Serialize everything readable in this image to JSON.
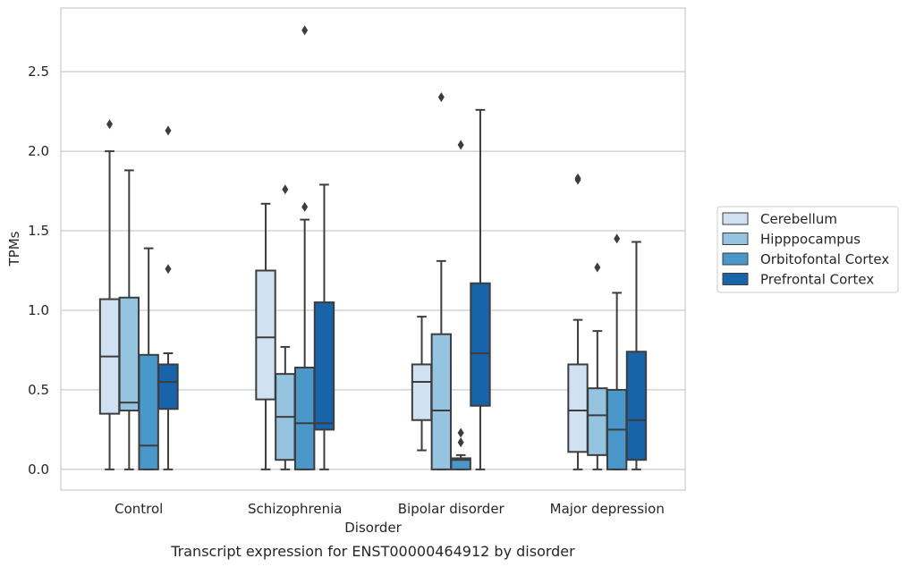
{
  "chart_data": {
    "type": "box",
    "caption": "Transcript expression for ENST00000464912 by disorder",
    "xlabel": "Disorder",
    "ylabel": "TPMs",
    "ylim": [
      -0.13,
      2.9
    ],
    "yticks": [
      "0.0",
      "0.5",
      "1.0",
      "1.5",
      "2.0",
      "2.5"
    ],
    "grid": true,
    "legend_position": "right",
    "categories": [
      "Control",
      "Schizophrenia",
      "Bipolar disorder",
      "Major depression"
    ],
    "series": [
      {
        "name": "Cerebellum",
        "color": "#d0e1f2",
        "boxes": [
          {
            "whisker_low": 0.0,
            "q1": 0.35,
            "median": 0.71,
            "q3": 1.07,
            "whisker_high": 2.0,
            "outliers": [
              2.17
            ]
          },
          {
            "whisker_low": 0.0,
            "q1": 0.44,
            "median": 0.83,
            "q3": 1.25,
            "whisker_high": 1.67,
            "outliers": []
          },
          {
            "whisker_low": 0.12,
            "q1": 0.31,
            "median": 0.55,
            "q3": 0.66,
            "whisker_high": 0.96,
            "outliers": []
          },
          {
            "whisker_low": 0.0,
            "q1": 0.11,
            "median": 0.37,
            "q3": 0.66,
            "whisker_high": 0.94,
            "outliers": [
              1.82,
              1.83
            ]
          }
        ]
      },
      {
        "name": "Hipppocampus",
        "color": "#94c4df",
        "boxes": [
          {
            "whisker_low": 0.0,
            "q1": 0.37,
            "median": 0.42,
            "q3": 1.08,
            "whisker_high": 1.88,
            "outliers": []
          },
          {
            "whisker_low": 0.0,
            "q1": 0.06,
            "median": 0.33,
            "q3": 0.6,
            "whisker_high": 0.77,
            "outliers": [
              1.76
            ]
          },
          {
            "whisker_low": 0.0,
            "q1": 0.0,
            "median": 0.37,
            "q3": 0.85,
            "whisker_high": 1.31,
            "outliers": [
              2.34
            ]
          },
          {
            "whisker_low": 0.0,
            "q1": 0.09,
            "median": 0.34,
            "q3": 0.51,
            "whisker_high": 0.87,
            "outliers": [
              1.27
            ]
          }
        ]
      },
      {
        "name": "Orbitofontal Cortex",
        "color": "#4a98c9",
        "boxes": [
          {
            "whisker_low": 0.0,
            "q1": 0.0,
            "median": 0.15,
            "q3": 0.72,
            "whisker_high": 1.39,
            "outliers": []
          },
          {
            "whisker_low": 0.0,
            "q1": 0.0,
            "median": 0.29,
            "q3": 0.64,
            "whisker_high": 1.57,
            "outliers": [
              1.65,
              2.76
            ]
          },
          {
            "whisker_low": 0.0,
            "q1": 0.0,
            "median": 0.06,
            "q3": 0.07,
            "whisker_high": 0.09,
            "outliers": [
              0.17,
              0.23,
              2.04
            ]
          },
          {
            "whisker_low": 0.0,
            "q1": 0.0,
            "median": 0.25,
            "q3": 0.5,
            "whisker_high": 1.11,
            "outliers": [
              1.45
            ]
          }
        ]
      },
      {
        "name": "Prefrontal Cortex",
        "color": "#1764ab",
        "boxes": [
          {
            "whisker_low": 0.0,
            "q1": 0.38,
            "median": 0.55,
            "q3": 0.66,
            "whisker_high": 0.73,
            "outliers": [
              1.26,
              2.13
            ]
          },
          {
            "whisker_low": 0.0,
            "q1": 0.25,
            "median": 0.29,
            "q3": 1.05,
            "whisker_high": 1.79,
            "outliers": []
          },
          {
            "whisker_low": 0.0,
            "q1": 0.4,
            "median": 0.73,
            "q3": 1.17,
            "whisker_high": 2.26,
            "outliers": []
          },
          {
            "whisker_low": 0.0,
            "q1": 0.06,
            "median": 0.31,
            "q3": 0.74,
            "whisker_high": 1.43,
            "outliers": []
          }
        ]
      }
    ]
  }
}
